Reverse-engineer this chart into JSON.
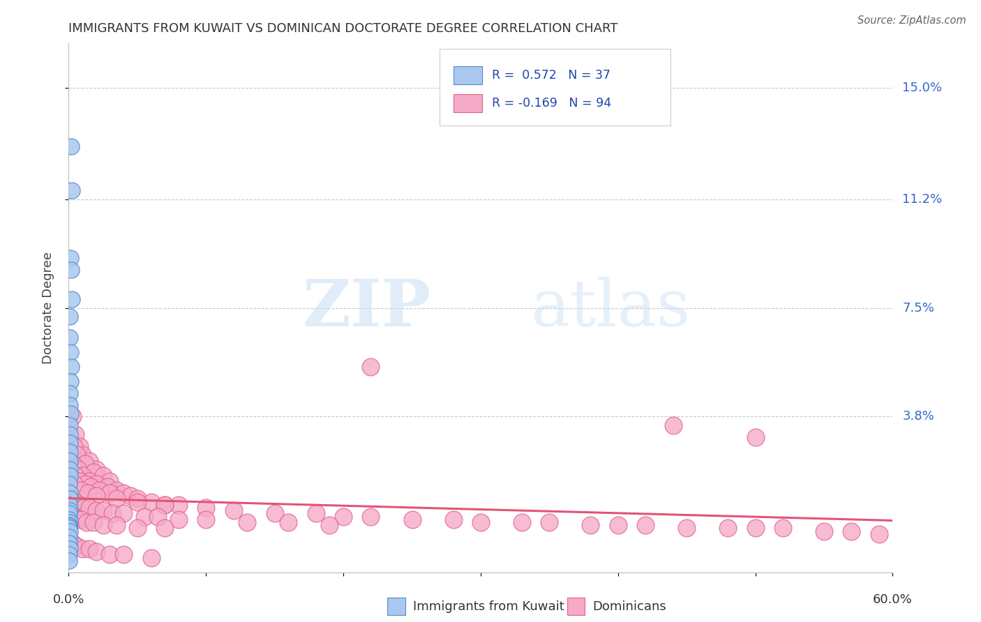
{
  "title": "IMMIGRANTS FROM KUWAIT VS DOMINICAN DOCTORATE DEGREE CORRELATION CHART",
  "source": "Source: ZipAtlas.com",
  "ylabel": "Doctorate Degree",
  "ytick_labels": [
    "3.8%",
    "7.5%",
    "11.2%",
    "15.0%"
  ],
  "ytick_values": [
    3.8,
    7.5,
    11.2,
    15.0
  ],
  "xmin": 0.0,
  "xmax": 60.0,
  "ymin": -1.5,
  "ymax": 16.5,
  "watermark_top": "ZIP",
  "watermark_bot": "atlas",
  "kuwait_color": "#aac8ee",
  "kuwait_edge_color": "#5588cc",
  "dominican_color": "#f5aac8",
  "dominican_edge_color": "#e06088",
  "kuwait_line_color": "#2255aa",
  "dominican_line_color": "#e05575",
  "kuwait_points": [
    [
      0.18,
      13.0
    ],
    [
      0.25,
      11.5
    ],
    [
      0.15,
      9.2
    ],
    [
      0.2,
      8.8
    ],
    [
      0.22,
      7.8
    ],
    [
      0.1,
      7.2
    ],
    [
      0.08,
      6.5
    ],
    [
      0.12,
      6.0
    ],
    [
      0.18,
      5.5
    ],
    [
      0.14,
      5.0
    ],
    [
      0.1,
      4.6
    ],
    [
      0.08,
      4.2
    ],
    [
      0.12,
      3.9
    ],
    [
      0.06,
      3.5
    ],
    [
      0.1,
      3.2
    ],
    [
      0.08,
      2.9
    ],
    [
      0.06,
      2.6
    ],
    [
      0.1,
      2.3
    ],
    [
      0.08,
      2.0
    ],
    [
      0.06,
      1.8
    ],
    [
      0.05,
      1.5
    ],
    [
      0.08,
      1.2
    ],
    [
      0.06,
      1.0
    ],
    [
      0.05,
      0.8
    ],
    [
      0.07,
      0.6
    ],
    [
      0.05,
      0.5
    ],
    [
      0.04,
      0.3
    ],
    [
      0.06,
      0.2
    ],
    [
      0.04,
      0.1
    ],
    [
      0.05,
      0.05
    ],
    [
      0.04,
      0.0
    ],
    [
      0.06,
      -0.1
    ],
    [
      0.05,
      -0.3
    ],
    [
      0.04,
      -0.5
    ],
    [
      0.06,
      -0.7
    ],
    [
      0.05,
      -0.9
    ],
    [
      0.04,
      -1.1
    ]
  ],
  "dominican_points": [
    [
      0.3,
      3.8
    ],
    [
      0.5,
      3.2
    ],
    [
      0.8,
      2.8
    ],
    [
      1.0,
      2.5
    ],
    [
      1.5,
      2.3
    ],
    [
      2.0,
      2.0
    ],
    [
      0.4,
      2.8
    ],
    [
      0.6,
      2.5
    ],
    [
      1.2,
      2.2
    ],
    [
      1.8,
      1.9
    ],
    [
      2.5,
      1.8
    ],
    [
      3.0,
      1.6
    ],
    [
      0.3,
      2.2
    ],
    [
      0.7,
      2.0
    ],
    [
      1.0,
      1.8
    ],
    [
      1.5,
      1.6
    ],
    [
      2.0,
      1.5
    ],
    [
      2.8,
      1.4
    ],
    [
      3.5,
      1.3
    ],
    [
      4.0,
      1.2
    ],
    [
      0.5,
      1.8
    ],
    [
      0.8,
      1.6
    ],
    [
      1.2,
      1.5
    ],
    [
      1.6,
      1.4
    ],
    [
      2.2,
      1.3
    ],
    [
      3.0,
      1.2
    ],
    [
      4.5,
      1.1
    ],
    [
      5.0,
      1.0
    ],
    [
      6.0,
      0.9
    ],
    [
      7.0,
      0.8
    ],
    [
      8.0,
      0.8
    ],
    [
      0.4,
      1.5
    ],
    [
      0.9,
      1.3
    ],
    [
      1.4,
      1.2
    ],
    [
      2.0,
      1.1
    ],
    [
      3.5,
      1.0
    ],
    [
      5.0,
      0.9
    ],
    [
      7.0,
      0.8
    ],
    [
      10.0,
      0.7
    ],
    [
      12.0,
      0.6
    ],
    [
      15.0,
      0.5
    ],
    [
      18.0,
      0.5
    ],
    [
      20.0,
      0.4
    ],
    [
      22.0,
      0.4
    ],
    [
      25.0,
      0.3
    ],
    [
      28.0,
      0.3
    ],
    [
      30.0,
      0.2
    ],
    [
      33.0,
      0.2
    ],
    [
      35.0,
      0.2
    ],
    [
      38.0,
      0.1
    ],
    [
      40.0,
      0.1
    ],
    [
      42.0,
      0.1
    ],
    [
      45.0,
      0.0
    ],
    [
      48.0,
      0.0
    ],
    [
      50.0,
      0.0
    ],
    [
      52.0,
      0.0
    ],
    [
      55.0,
      -0.1
    ],
    [
      57.0,
      -0.1
    ],
    [
      59.0,
      -0.2
    ],
    [
      0.2,
      1.0
    ],
    [
      0.5,
      0.9
    ],
    [
      0.8,
      0.8
    ],
    [
      1.1,
      0.7
    ],
    [
      1.5,
      0.7
    ],
    [
      2.0,
      0.6
    ],
    [
      2.5,
      0.6
    ],
    [
      3.2,
      0.5
    ],
    [
      4.0,
      0.5
    ],
    [
      5.5,
      0.4
    ],
    [
      6.5,
      0.4
    ],
    [
      8.0,
      0.3
    ],
    [
      10.0,
      0.3
    ],
    [
      13.0,
      0.2
    ],
    [
      16.0,
      0.2
    ],
    [
      19.0,
      0.1
    ],
    [
      0.2,
      0.5
    ],
    [
      0.4,
      0.4
    ],
    [
      0.6,
      0.3
    ],
    [
      0.9,
      0.3
    ],
    [
      1.3,
      0.2
    ],
    [
      1.8,
      0.2
    ],
    [
      2.5,
      0.1
    ],
    [
      3.5,
      0.1
    ],
    [
      5.0,
      0.0
    ],
    [
      7.0,
      0.0
    ],
    [
      22.0,
      5.5
    ],
    [
      44.0,
      3.5
    ],
    [
      50.0,
      3.1
    ],
    [
      0.3,
      -0.5
    ],
    [
      0.6,
      -0.6
    ],
    [
      1.0,
      -0.7
    ],
    [
      1.5,
      -0.7
    ],
    [
      2.0,
      -0.8
    ],
    [
      3.0,
      -0.9
    ],
    [
      4.0,
      -0.9
    ],
    [
      6.0,
      -1.0
    ]
  ]
}
